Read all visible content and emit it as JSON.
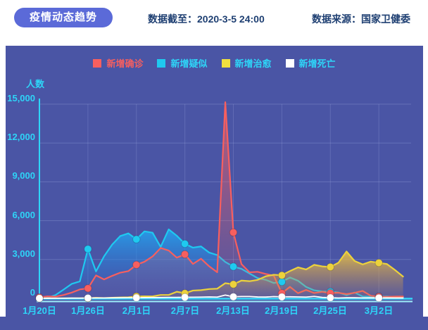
{
  "header": {
    "title": "疫情动态趋势",
    "data_cutoff": "数据截至：2020-3-5 24:00",
    "data_source": "数据来源：国家卫健委"
  },
  "colors": {
    "panel_bg": "#4a55a5",
    "pill_bg": "#5b6ad8",
    "axis_cyan": "#2ed5f8",
    "header_text": "#1e3f72",
    "confirmed": "#f75f5f",
    "suspected": "#1fc9f0",
    "cured": "#ecd23c",
    "deaths": "#ffffff"
  },
  "chart_data": {
    "type": "line",
    "title": "疫情动态趋势",
    "ylabel": "人数",
    "xlabel": "",
    "ylim": [
      0,
      15000
    ],
    "grid": true,
    "legend_position": "top",
    "y_tick_values": [
      0,
      3000,
      6000,
      9000,
      12000,
      15000
    ],
    "y_tick_labels": [
      "0",
      "3,000",
      "6,000",
      "9,000",
      "12,000",
      "15,000"
    ],
    "x_tick_indices": [
      0,
      6,
      12,
      18,
      24,
      30,
      36,
      42
    ],
    "x_tick_labels": [
      "1月20日",
      "1月26日",
      "2月1日",
      "2月7日",
      "2月13日",
      "2月19日",
      "2月25日",
      "3月2日"
    ],
    "dates": [
      "1月20日",
      "1月21日",
      "1月22日",
      "1月23日",
      "1月24日",
      "1月25日",
      "1月26日",
      "1月27日",
      "1月28日",
      "1月29日",
      "1月30日",
      "1月31日",
      "2月1日",
      "2月2日",
      "2月3日",
      "2月4日",
      "2月5日",
      "2月6日",
      "2月7日",
      "2月8日",
      "2月9日",
      "2月10日",
      "2月11日",
      "2月12日",
      "2月13日",
      "2月14日",
      "2月15日",
      "2月16日",
      "2月17日",
      "2月18日",
      "2月19日",
      "2月20日",
      "2月21日",
      "2月22日",
      "2月23日",
      "2月24日",
      "2月25日",
      "2月26日",
      "2月27日",
      "2月28日",
      "2月29日",
      "3月1日",
      "3月2日",
      "3月3日",
      "3月4日",
      "3月5日"
    ],
    "series": [
      {
        "name": "新增确诊",
        "color": "#f75f5f",
        "values": [
          77,
          149,
          131,
          259,
          444,
          688,
          769,
          1771,
          1459,
          1737,
          1982,
          2102,
          2590,
          2829,
          3235,
          3887,
          3694,
          3143,
          3399,
          2656,
          3062,
          2478,
          2015,
          15152,
          5090,
          2641,
          2009,
          2048,
          1886,
          1749,
          394,
          889,
          397,
          648,
          409,
          508,
          406,
          433,
          327,
          427,
          573,
          202,
          125,
          119,
          139,
          143
        ]
      },
      {
        "name": "新增疑似",
        "color": "#1fc9f0",
        "values": [
          27,
          53,
          257,
          680,
          1118,
          1309,
          3806,
          2077,
          3248,
          4148,
          4812,
          5019,
          4562,
          5173,
          5072,
          3971,
          5328,
          4833,
          4214,
          3916,
          4008,
          3536,
          3342,
          2807,
          2450,
          2277,
          1918,
          1563,
          1432,
          1185,
          1277,
          1614,
          1361,
          882,
          620,
          530,
          508,
          452,
          248,
          452,
          141,
          129,
          129,
          143,
          102,
          99
        ]
      },
      {
        "name": "新增治愈",
        "color": "#ecd23c",
        "values": [
          0,
          0,
          0,
          6,
          3,
          11,
          9,
          43,
          21,
          47,
          72,
          85,
          147,
          157,
          152,
          262,
          261,
          510,
          387,
          600,
          632,
          716,
          744,
          1171,
          1081,
          1373,
          1323,
          1425,
          1701,
          1824,
          1779,
          2109,
          2393,
          2230,
          2589,
          2467,
          2422,
          2750,
          3622,
          2885,
          2623,
          2837,
          2742,
          2652,
          2189,
          1681
        ]
      },
      {
        "name": "新增死亡",
        "color": "#ffffff",
        "values": [
          2,
          3,
          8,
          8,
          16,
          15,
          24,
          26,
          26,
          38,
          43,
          46,
          45,
          57,
          64,
          65,
          73,
          73,
          86,
          89,
          97,
          108,
          97,
          254,
          121,
          143,
          142,
          105,
          98,
          136,
          114,
          118,
          109,
          97,
          150,
          71,
          52,
          29,
          44,
          47,
          35,
          42,
          31,
          38,
          31,
          30
        ]
      }
    ]
  }
}
